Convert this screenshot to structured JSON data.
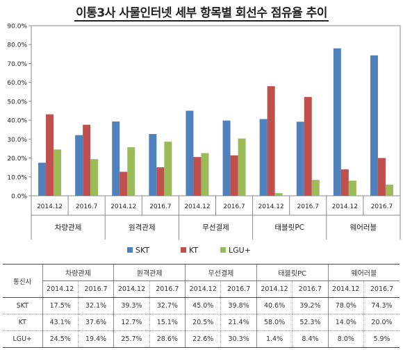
{
  "title": "이통3사 사물인터넷 세부 항목별 회선수 점유율 추이",
  "chart_data": {
    "type": "bar",
    "title": "이통3사 사물인터넷 세부 항목별 회선수 점유율 추이",
    "groups": [
      "차량관제",
      "원격관제",
      "무선결제",
      "태블릿PC",
      "웨어러블"
    ],
    "periods": [
      "2014.12",
      "2016.7"
    ],
    "categories": [
      "2014.12",
      "2016.7",
      "2014.12",
      "2016.7",
      "2014.12",
      "2016.7",
      "2014.12",
      "2016.7",
      "2014.12",
      "2016.7"
    ],
    "series": [
      {
        "name": "SKT",
        "color": "#4f81bd",
        "values": [
          17.5,
          32.1,
          39.3,
          32.7,
          45.0,
          39.8,
          40.6,
          39.2,
          78.0,
          74.3
        ]
      },
      {
        "name": "KT",
        "color": "#c0504d",
        "values": [
          43.1,
          37.6,
          12.7,
          15.1,
          20.5,
          21.4,
          58.0,
          52.3,
          14.0,
          20.0
        ]
      },
      {
        "name": "LGU+",
        "color": "#9bbb59",
        "values": [
          24.5,
          19.4,
          25.7,
          28.6,
          22.6,
          30.3,
          1.4,
          8.4,
          8.0,
          5.9
        ]
      }
    ],
    "ylim": [
      0,
      90
    ],
    "yticks": [
      "0.0%",
      "10.0%",
      "20.0%",
      "30.0%",
      "40.0%",
      "50.0%",
      "60.0%",
      "70.0%",
      "80.0%",
      "90.0%"
    ],
    "grid": false,
    "legend": "bottom"
  },
  "table": {
    "header": "통신사",
    "groups": [
      "차량관제",
      "원격관제",
      "무선결제",
      "태블릿PC",
      "웨어러블"
    ],
    "periods": [
      "2014.12",
      "2016.7",
      "2014.12",
      "2016.7",
      "2014.12",
      "2016.7",
      "2014.12",
      "2016.7",
      "2014.12",
      "2016.7"
    ],
    "rows": [
      {
        "label": "SKT",
        "values": [
          "17.5%",
          "32.1%",
          "39.3%",
          "32.7%",
          "45.0%",
          "39.8%",
          "40.6%",
          "39.2%",
          "78.0%",
          "74.3%"
        ]
      },
      {
        "label": "KT",
        "values": [
          "43.1%",
          "37.6%",
          "12.7%",
          "15.1%",
          "20.5%",
          "21.4%",
          "58.0%",
          "52.3%",
          "14.0%",
          "20.0%"
        ]
      },
      {
        "label": "LGU+",
        "values": [
          "24.5%",
          "19.4%",
          "25.7%",
          "28.6%",
          "22.6%",
          "30.3%",
          "1.4%",
          "8.4%",
          "8.0%",
          "5.9%"
        ]
      }
    ]
  }
}
